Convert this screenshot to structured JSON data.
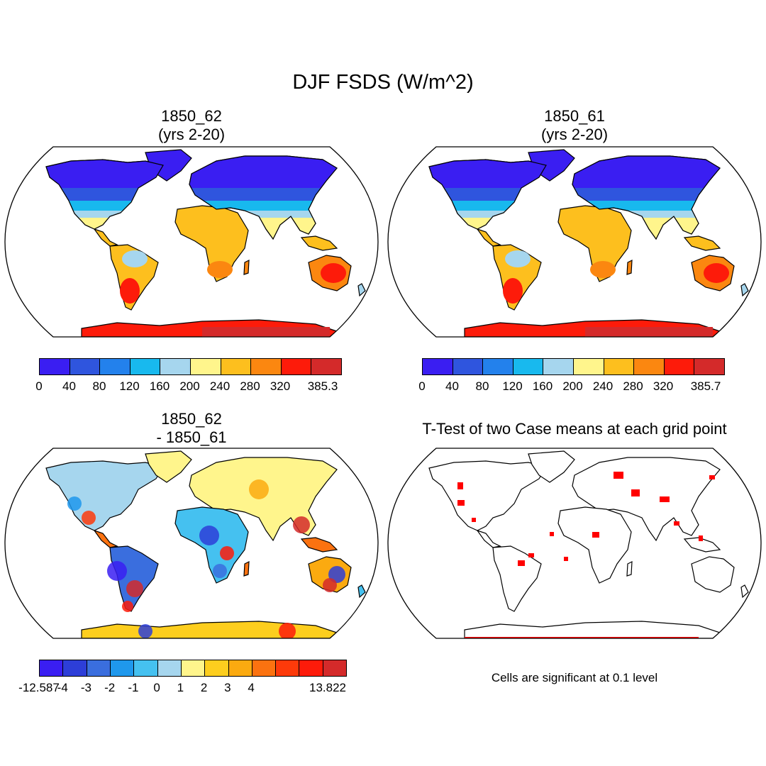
{
  "title": "DJF FSDS (W/m^2)",
  "panels": [
    {
      "id": "p1",
      "title_line1": "1850_62",
      "title_line2": "(yrs 2-20)"
    },
    {
      "id": "p2",
      "title_line1": "1850_61",
      "title_line2": "(yrs 2-20)"
    },
    {
      "id": "p3",
      "title_line1": "1850_62",
      "title_line2": "- 1850_61"
    },
    {
      "id": "p4",
      "title_line1": "T-Test of two Case means at each grid point",
      "title_line2": ""
    }
  ],
  "colorbars": {
    "cb1": {
      "colors": [
        "#3a1ef2",
        "#2f55de",
        "#2381ec",
        "#18b9ee",
        "#a6d6ee",
        "#fff58c",
        "#fdbf1e",
        "#fb8710",
        "#fd1b0a",
        "#d42a2a"
      ],
      "labels": [
        "0",
        "40",
        "80",
        "120",
        "160",
        "200",
        "240",
        "280",
        "320",
        "385.3"
      ]
    },
    "cb2": {
      "colors": [
        "#3a1ef2",
        "#2f55de",
        "#2381ec",
        "#18b9ee",
        "#a6d6ee",
        "#fff58c",
        "#fdbf1e",
        "#fb8710",
        "#fd1b0a",
        "#d42a2a"
      ],
      "labels": [
        "0",
        "40",
        "80",
        "120",
        "160",
        "200",
        "240",
        "280",
        "320",
        "385.7"
      ]
    },
    "cb3": {
      "colors": [
        "#3a1ef2",
        "#2d3ed8",
        "#3a6ede",
        "#1f98ec",
        "#45c1f0",
        "#a6d6ee",
        "#fff58c",
        "#fdce1e",
        "#fbaa10",
        "#fb7210",
        "#fd3a0a",
        "#fd1b0a",
        "#d42a2a"
      ],
      "labels": [
        "-12.587",
        "-4",
        "-3",
        "-2",
        "-1",
        "0",
        "1",
        "2",
        "3",
        "4",
        "13.822"
      ]
    }
  },
  "significance_note": "Cells are significant at 0.1 level",
  "map_colors": {
    "ocean": "#ffffff",
    "coast": "#000000",
    "significant": "#ff0000"
  }
}
